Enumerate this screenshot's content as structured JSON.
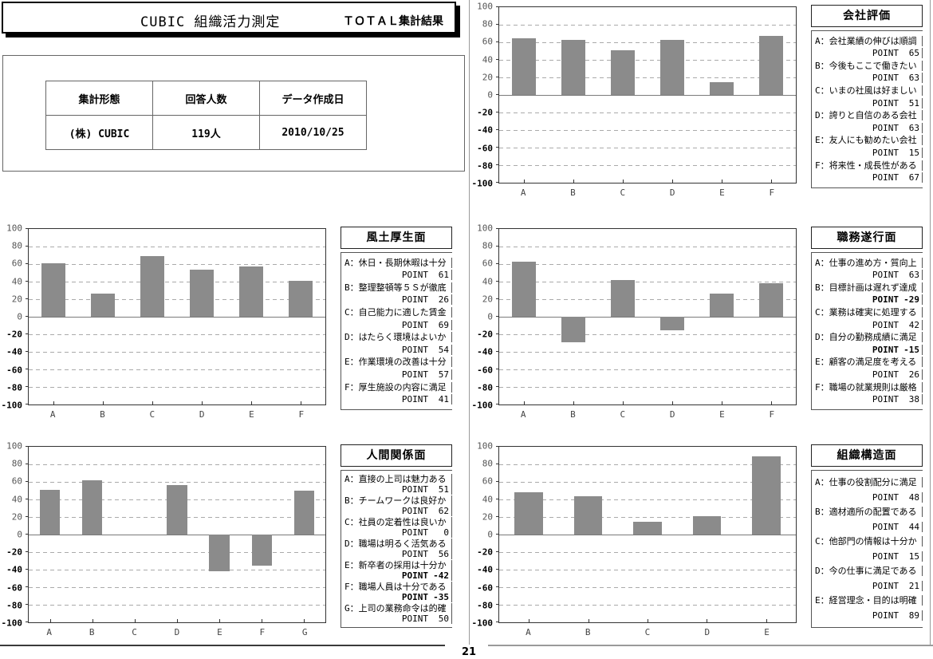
{
  "header": {
    "title": "CUBIC 組織活力測定",
    "subtitle": "ＴＯＴＡＬ集計結果"
  },
  "info_table": {
    "headers": [
      "集計形態",
      "回答人数",
      "データ作成日"
    ],
    "values": [
      "(株) CUBIC",
      "119人",
      "2010/10/25"
    ]
  },
  "strings": {
    "point_label": "POINT"
  },
  "colors": {
    "bar": "#8b8b8b",
    "grid": "#aaaaaa",
    "zero_line": "#7a7a7a",
    "plot_border": "#333333"
  },
  "axis": {
    "ymin": -100,
    "ymax": 100,
    "step": 20
  },
  "footer": {
    "page_number": "21"
  },
  "chart_data": [
    {
      "type": "bar",
      "title": "会社評価",
      "categories": [
        "A",
        "B",
        "C",
        "D",
        "E",
        "F"
      ],
      "values": [
        65,
        63,
        51,
        63,
        15,
        67
      ],
      "ylim": [
        -100,
        100
      ],
      "grid": "dashed-horizontal",
      "legend_position": "right",
      "legend": [
        {
          "key": "A",
          "label": "会社業績の伸びは順調",
          "point": 65
        },
        {
          "key": "B",
          "label": "今後もここで働きたい",
          "point": 63
        },
        {
          "key": "C",
          "label": "いまの社風は好ましい",
          "point": 51
        },
        {
          "key": "D",
          "label": "誇りと自信のある会社",
          "point": 63
        },
        {
          "key": "E",
          "label": "友人にも勧めたい会社",
          "point": 15
        },
        {
          "key": "F",
          "label": "将来性・成長性がある",
          "point": 67
        }
      ]
    },
    {
      "type": "bar",
      "title": "風土厚生面",
      "categories": [
        "A",
        "B",
        "C",
        "D",
        "E",
        "F"
      ],
      "values": [
        61,
        26,
        69,
        54,
        57,
        41
      ],
      "ylim": [
        -100,
        100
      ],
      "grid": "dashed-horizontal",
      "legend_position": "right",
      "legend": [
        {
          "key": "A",
          "label": "休日・長期休暇は十分",
          "point": 61
        },
        {
          "key": "B",
          "label": "整理整頓等５Ｓが徹底",
          "point": 26
        },
        {
          "key": "C",
          "label": "自己能力に適した賃金",
          "point": 69
        },
        {
          "key": "D",
          "label": "はたらく環境はよいか",
          "point": 54
        },
        {
          "key": "E",
          "label": "作業環境の改善は十分",
          "point": 57
        },
        {
          "key": "F",
          "label": "厚生施設の内容に満足",
          "point": 41
        }
      ]
    },
    {
      "type": "bar",
      "title": "職務遂行面",
      "categories": [
        "A",
        "B",
        "C",
        "D",
        "E",
        "F"
      ],
      "values": [
        63,
        -29,
        42,
        -15,
        26,
        38
      ],
      "ylim": [
        -100,
        100
      ],
      "grid": "dashed-horizontal",
      "legend_position": "right",
      "legend": [
        {
          "key": "A",
          "label": "仕事の進め方・質向上",
          "point": 63
        },
        {
          "key": "B",
          "label": "目標計画は遅れず達成",
          "point": -29
        },
        {
          "key": "C",
          "label": "業務は確実に処理する",
          "point": 42
        },
        {
          "key": "D",
          "label": "自分の勤務成績に満足",
          "point": -15
        },
        {
          "key": "E",
          "label": "顧客の満足度を考える",
          "point": 26
        },
        {
          "key": "F",
          "label": "職場の就業規則は厳格",
          "point": 38
        }
      ]
    },
    {
      "type": "bar",
      "title": "人間関係面",
      "categories": [
        "A",
        "B",
        "C",
        "D",
        "E",
        "F",
        "G"
      ],
      "values": [
        51,
        62,
        0,
        56,
        -42,
        -35,
        50
      ],
      "ylim": [
        -100,
        100
      ],
      "grid": "dashed-horizontal",
      "legend_position": "right",
      "legend": [
        {
          "key": "A",
          "label": "直接の上司は魅力ある",
          "point": 51
        },
        {
          "key": "B",
          "label": "チームワークは良好か",
          "point": 62
        },
        {
          "key": "C",
          "label": "社員の定着性は良いか",
          "point": 0
        },
        {
          "key": "D",
          "label": "職場は明るく活気ある",
          "point": 56
        },
        {
          "key": "E",
          "label": "新卒者の採用は十分か",
          "point": -42
        },
        {
          "key": "F",
          "label": "職場人員は十分である",
          "point": -35
        },
        {
          "key": "G",
          "label": "上司の業務命令は的確",
          "point": 50
        }
      ]
    },
    {
      "type": "bar",
      "title": "組織構造面",
      "categories": [
        "A",
        "B",
        "C",
        "D",
        "E"
      ],
      "values": [
        48,
        44,
        15,
        21,
        89
      ],
      "ylim": [
        -100,
        100
      ],
      "grid": "dashed-horizontal",
      "legend_position": "right",
      "legend": [
        {
          "key": "A",
          "label": "仕事の役割配分に満足",
          "point": 48
        },
        {
          "key": "B",
          "label": "適材適所の配置である",
          "point": 44
        },
        {
          "key": "C",
          "label": "他部門の情報は十分か",
          "point": 15
        },
        {
          "key": "D",
          "label": "今の仕事に満足である",
          "point": 21
        },
        {
          "key": "E",
          "label": "経営理念・目的は明確",
          "point": 89
        }
      ]
    }
  ]
}
